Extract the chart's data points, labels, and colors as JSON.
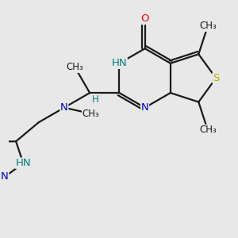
{
  "background_color": "#e8e8e8",
  "bond_color": "#1a1a1a",
  "atom_colors": {
    "N": "#0000cc",
    "O": "#ff0000",
    "S": "#bbaa00",
    "NH": "#008080",
    "C": "#1a1a1a"
  },
  "figsize": [
    3.0,
    3.0
  ],
  "dpi": 100,
  "xlim": [
    0,
    10
  ],
  "ylim": [
    0,
    10
  ]
}
